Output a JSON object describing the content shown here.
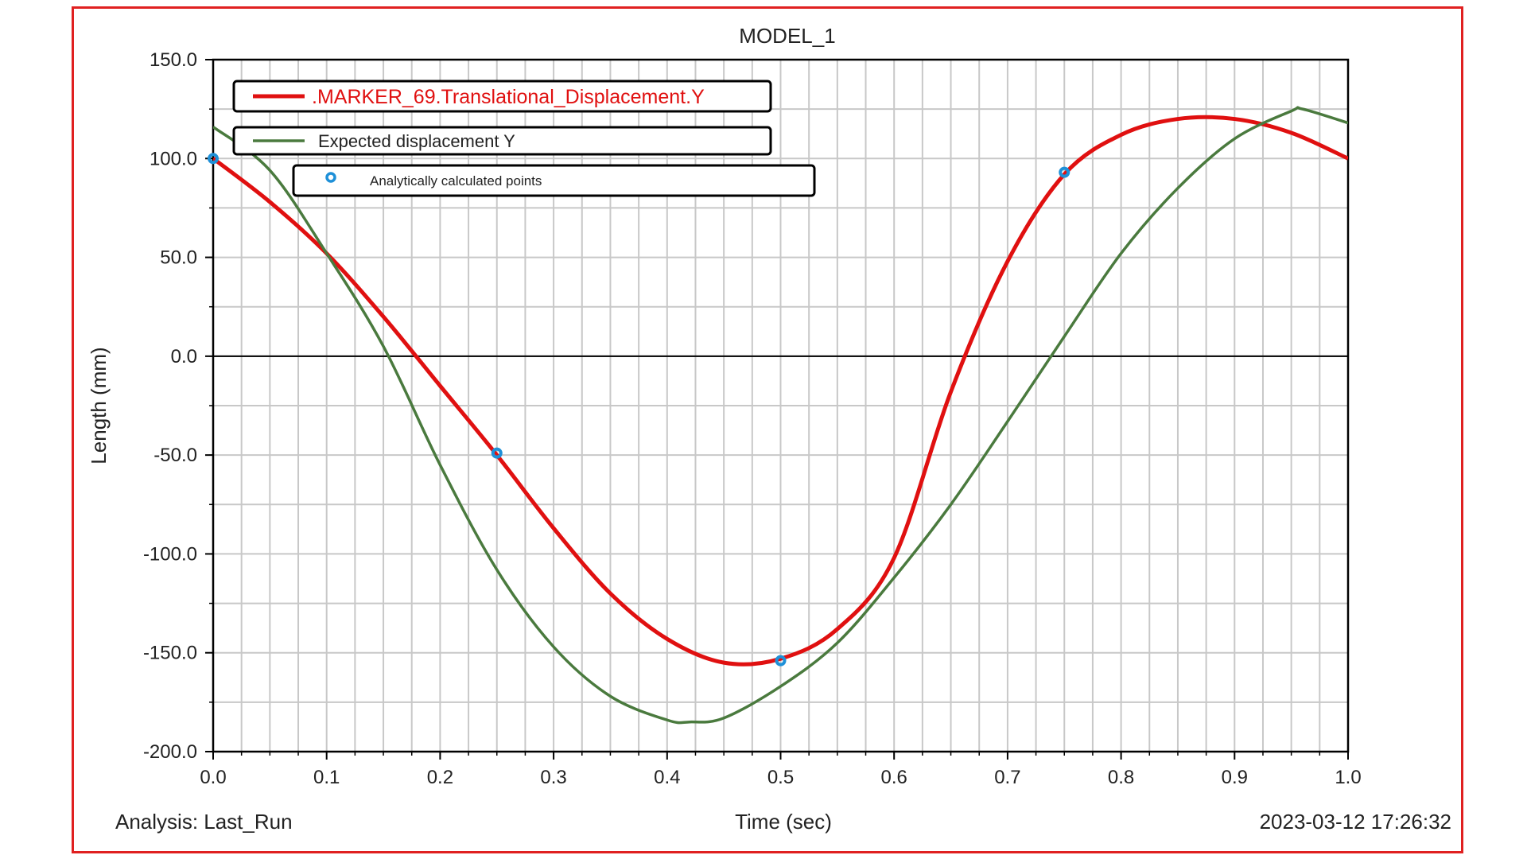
{
  "chart_data": {
    "type": "line",
    "title": "MODEL_1",
    "xlabel": "Time (sec)",
    "ylabel": "Length (mm)",
    "xlim": [
      0.0,
      1.0
    ],
    "ylim": [
      -200.0,
      150.0
    ],
    "x_ticks": [
      "0.0",
      "0.1",
      "0.2",
      "0.3",
      "0.4",
      "0.5",
      "0.6",
      "0.7",
      "0.8",
      "0.9",
      "1.0"
    ],
    "y_ticks": [
      "150.0",
      "100.0",
      "50.0",
      "0.0",
      "-50.0",
      "-100.0",
      "-150.0",
      "-200.0"
    ],
    "grid": true,
    "legend_position": "top-left",
    "series": [
      {
        "name": ".MARKER_69.Translational_Displacement.Y",
        "color": "#e01010",
        "style": "line",
        "x": [
          0.0,
          0.05,
          0.1,
          0.15,
          0.2,
          0.25,
          0.3,
          0.35,
          0.4,
          0.45,
          0.5,
          0.55,
          0.6,
          0.65,
          0.7,
          0.75,
          0.8,
          0.85,
          0.9,
          0.95,
          1.0
        ],
        "y": [
          100.0,
          78.0,
          52.0,
          20.0,
          -15.0,
          -50.0,
          -87.0,
          -120.0,
          -143.0,
          -155.0,
          -153.0,
          -138.0,
          -102.0,
          -18.0,
          48.0,
          92.0,
          112.0,
          120.0,
          120.0,
          113.0,
          100.0
        ]
      },
      {
        "name": "Expected displacement Y",
        "color": "#4a7a3e",
        "style": "line",
        "x": [
          0.0,
          0.05,
          0.1,
          0.15,
          0.2,
          0.25,
          0.3,
          0.35,
          0.4,
          0.42,
          0.45,
          0.5,
          0.55,
          0.6,
          0.65,
          0.7,
          0.75,
          0.8,
          0.85,
          0.9,
          0.95,
          0.96,
          1.0
        ],
        "y": [
          116.0,
          94.0,
          52.0,
          5.0,
          -55.0,
          -108.0,
          -147.0,
          -172.0,
          -184.0,
          -185.0,
          -183.0,
          -167.0,
          -145.0,
          -112.0,
          -75.0,
          -33.0,
          10.0,
          52.0,
          85.0,
          110.0,
          124.0,
          125.0,
          118.0
        ]
      },
      {
        "name": "Analytically calculated points",
        "color": "#1e90d8",
        "style": "markers",
        "x": [
          0.0,
          0.25,
          0.5,
          0.75
        ],
        "y": [
          100.0,
          -49.0,
          -154.0,
          93.0
        ]
      }
    ]
  },
  "footer": {
    "analysis": "Analysis:  Last_Run",
    "timestamp": "2023-03-12 17:26:32"
  }
}
